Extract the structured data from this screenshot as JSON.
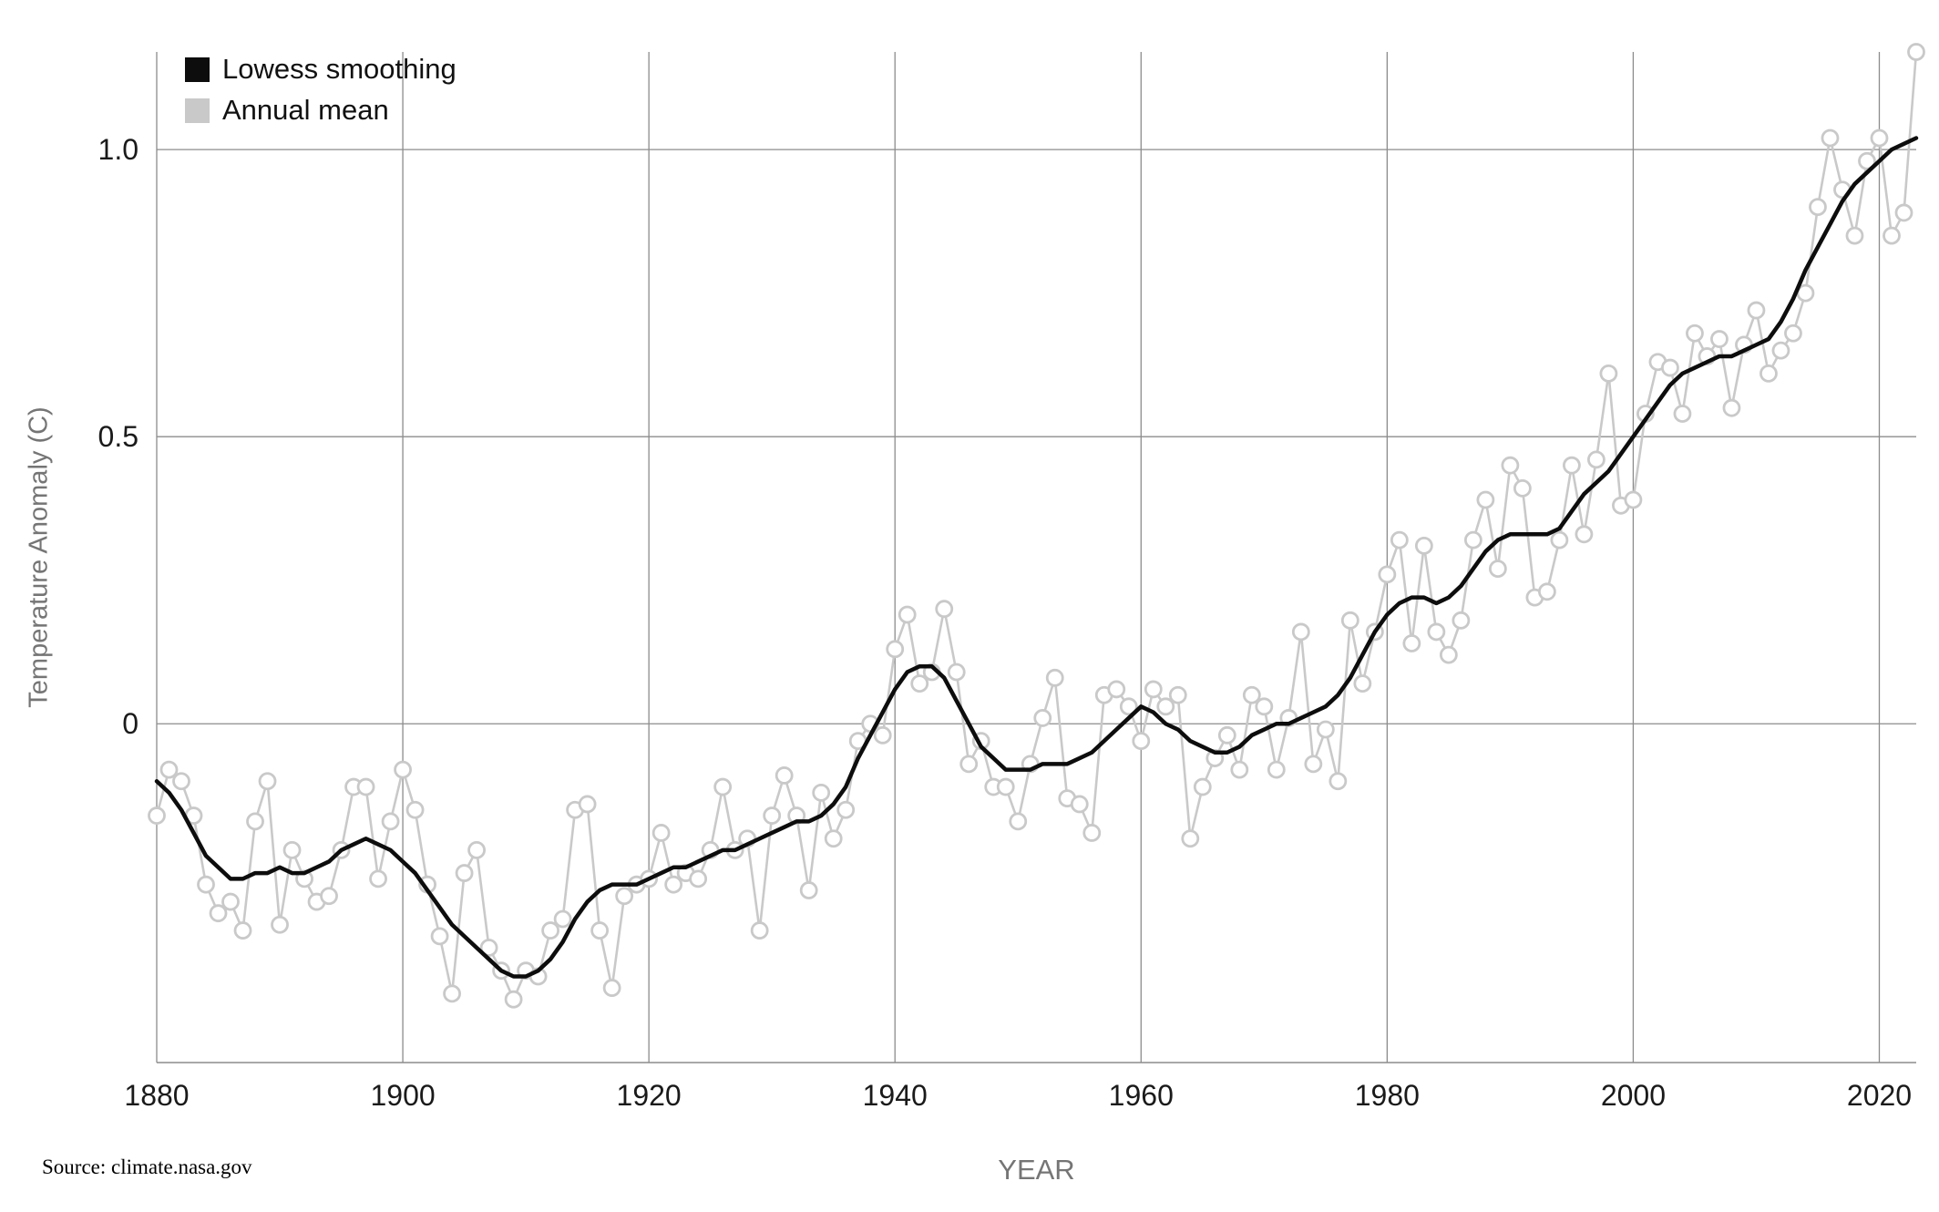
{
  "chart_data": {
    "type": "line",
    "title": "",
    "xlabel": "YEAR",
    "ylabel": "Temperature Anomaly (C)",
    "source": "Source: climate.nasa.gov",
    "xlim": [
      1880,
      2023
    ],
    "ylim": [
      -0.59,
      1.17
    ],
    "x_ticks": [
      1880,
      1900,
      1920,
      1940,
      1960,
      1980,
      2000,
      2020
    ],
    "y_ticks": [
      0,
      0.5,
      1.0
    ],
    "y_tick_labels": [
      "0",
      "0.5",
      "1.0"
    ],
    "grid": true,
    "colors": {
      "background": "#ffffff",
      "grid": "#8c8c8c",
      "axis_text": "#1a1a1a",
      "muted_text": "#757575",
      "annual": "#c9c9c9",
      "lowess": "#0d0d0d"
    },
    "legend": {
      "position": "top-left",
      "entries": [
        {
          "label": "Lowess smoothing",
          "color": "#0d0d0d"
        },
        {
          "label": "Annual mean",
          "color": "#c9c9c9"
        }
      ]
    },
    "years": [
      1880,
      1881,
      1882,
      1883,
      1884,
      1885,
      1886,
      1887,
      1888,
      1889,
      1890,
      1891,
      1892,
      1893,
      1894,
      1895,
      1896,
      1897,
      1898,
      1899,
      1900,
      1901,
      1902,
      1903,
      1904,
      1905,
      1906,
      1907,
      1908,
      1909,
      1910,
      1911,
      1912,
      1913,
      1914,
      1915,
      1916,
      1917,
      1918,
      1919,
      1920,
      1921,
      1922,
      1923,
      1924,
      1925,
      1926,
      1927,
      1928,
      1929,
      1930,
      1931,
      1932,
      1933,
      1934,
      1935,
      1936,
      1937,
      1938,
      1939,
      1940,
      1941,
      1942,
      1943,
      1944,
      1945,
      1946,
      1947,
      1948,
      1949,
      1950,
      1951,
      1952,
      1953,
      1954,
      1955,
      1956,
      1957,
      1958,
      1959,
      1960,
      1961,
      1962,
      1963,
      1964,
      1965,
      1966,
      1967,
      1968,
      1969,
      1970,
      1971,
      1972,
      1973,
      1974,
      1975,
      1976,
      1977,
      1978,
      1979,
      1980,
      1981,
      1982,
      1983,
      1984,
      1985,
      1986,
      1987,
      1988,
      1989,
      1990,
      1991,
      1992,
      1993,
      1994,
      1995,
      1996,
      1997,
      1998,
      1999,
      2000,
      2001,
      2002,
      2003,
      2004,
      2005,
      2006,
      2007,
      2008,
      2009,
      2010,
      2011,
      2012,
      2013,
      2014,
      2015,
      2016,
      2017,
      2018,
      2019,
      2020,
      2021,
      2022,
      2023
    ],
    "series": [
      {
        "name": "Annual mean",
        "style": "line+markers",
        "color": "#c9c9c9",
        "values": [
          -0.16,
          -0.08,
          -0.1,
          -0.16,
          -0.28,
          -0.33,
          -0.31,
          -0.36,
          -0.17,
          -0.1,
          -0.35,
          -0.22,
          -0.27,
          -0.31,
          -0.3,
          -0.22,
          -0.11,
          -0.11,
          -0.27,
          -0.17,
          -0.08,
          -0.15,
          -0.28,
          -0.37,
          -0.47,
          -0.26,
          -0.22,
          -0.39,
          -0.43,
          -0.48,
          -0.43,
          -0.44,
          -0.36,
          -0.34,
          -0.15,
          -0.14,
          -0.36,
          -0.46,
          -0.3,
          -0.28,
          -0.27,
          -0.19,
          -0.28,
          -0.26,
          -0.27,
          -0.22,
          -0.11,
          -0.22,
          -0.2,
          -0.36,
          -0.16,
          -0.09,
          -0.16,
          -0.29,
          -0.12,
          -0.2,
          -0.15,
          -0.03,
          0.0,
          -0.02,
          0.13,
          0.19,
          0.07,
          0.09,
          0.2,
          0.09,
          -0.07,
          -0.03,
          -0.11,
          -0.11,
          -0.17,
          -0.07,
          0.01,
          0.08,
          -0.13,
          -0.14,
          -0.19,
          0.05,
          0.06,
          0.03,
          -0.03,
          0.06,
          0.03,
          0.05,
          -0.2,
          -0.11,
          -0.06,
          -0.02,
          -0.08,
          0.05,
          0.03,
          -0.08,
          0.01,
          0.16,
          -0.07,
          -0.01,
          -0.1,
          0.18,
          0.07,
          0.16,
          0.26,
          0.32,
          0.14,
          0.31,
          0.16,
          0.12,
          0.18,
          0.32,
          0.39,
          0.27,
          0.45,
          0.41,
          0.22,
          0.23,
          0.32,
          0.45,
          0.33,
          0.46,
          0.61,
          0.38,
          0.39,
          0.54,
          0.63,
          0.62,
          0.54,
          0.68,
          0.64,
          0.67,
          0.55,
          0.66,
          0.72,
          0.61,
          0.65,
          0.68,
          0.75,
          0.9,
          1.02,
          0.93,
          0.85,
          0.98,
          1.02,
          0.85,
          0.89,
          1.17
        ]
      },
      {
        "name": "Lowess smoothing",
        "style": "line",
        "color": "#0d0d0d",
        "values": [
          -0.1,
          -0.12,
          -0.15,
          -0.19,
          -0.23,
          -0.25,
          -0.27,
          -0.27,
          -0.26,
          -0.26,
          -0.25,
          -0.26,
          -0.26,
          -0.25,
          -0.24,
          -0.22,
          -0.21,
          -0.2,
          -0.21,
          -0.22,
          -0.24,
          -0.26,
          -0.29,
          -0.32,
          -0.35,
          -0.37,
          -0.39,
          -0.41,
          -0.43,
          -0.44,
          -0.44,
          -0.43,
          -0.41,
          -0.38,
          -0.34,
          -0.31,
          -0.29,
          -0.28,
          -0.28,
          -0.28,
          -0.27,
          -0.26,
          -0.25,
          -0.25,
          -0.24,
          -0.23,
          -0.22,
          -0.22,
          -0.21,
          -0.2,
          -0.19,
          -0.18,
          -0.17,
          -0.17,
          -0.16,
          -0.14,
          -0.11,
          -0.06,
          -0.02,
          0.02,
          0.06,
          0.09,
          0.1,
          0.1,
          0.08,
          0.04,
          0.0,
          -0.04,
          -0.06,
          -0.08,
          -0.08,
          -0.08,
          -0.07,
          -0.07,
          -0.07,
          -0.06,
          -0.05,
          -0.03,
          -0.01,
          0.01,
          0.03,
          0.02,
          0.0,
          -0.01,
          -0.03,
          -0.04,
          -0.05,
          -0.05,
          -0.04,
          -0.02,
          -0.01,
          0.0,
          0.0,
          0.01,
          0.02,
          0.03,
          0.05,
          0.08,
          0.12,
          0.16,
          0.19,
          0.21,
          0.22,
          0.22,
          0.21,
          0.22,
          0.24,
          0.27,
          0.3,
          0.32,
          0.33,
          0.33,
          0.33,
          0.33,
          0.34,
          0.37,
          0.4,
          0.42,
          0.44,
          0.47,
          0.5,
          0.53,
          0.56,
          0.59,
          0.61,
          0.62,
          0.63,
          0.64,
          0.64,
          0.65,
          0.66,
          0.67,
          0.7,
          0.74,
          0.79,
          0.83,
          0.87,
          0.91,
          0.94,
          0.96,
          0.98,
          1.0,
          1.01,
          1.02
        ]
      }
    ]
  }
}
